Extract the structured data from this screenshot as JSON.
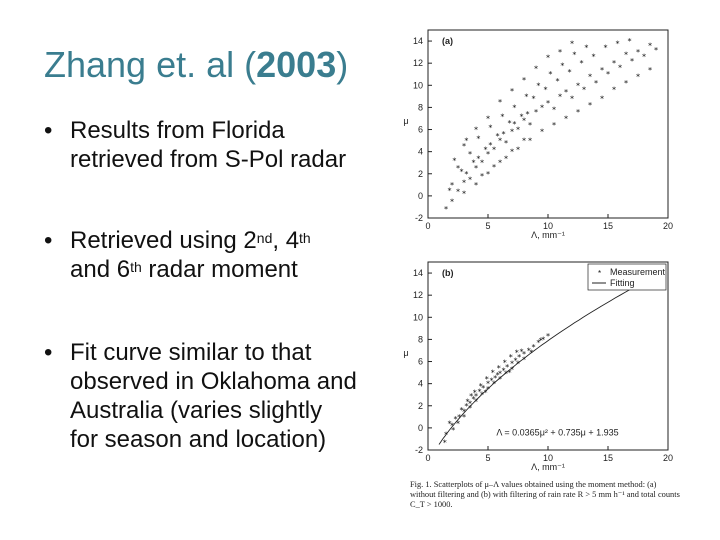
{
  "slide": {
    "title_prefix": "Zhang et. al (",
    "title_year": "2003",
    "title_suffix": ")",
    "bullets": [
      {
        "line1": "Results from Florida",
        "line2": "retrieved from S-Pol radar"
      },
      {
        "line1_a": "Retrieved using 2",
        "sup1": "nd",
        "line1_b": ", 4",
        "sup2": "th",
        "line2_a": "and 6",
        "sup3": "th",
        "line2_b": " radar moment"
      },
      {
        "line1": "Fit curve similar to that",
        "line2": "observed in Oklahoma and",
        "line3": "Australia (varies slightly",
        "line4": "for season and location)"
      }
    ]
  },
  "figure": {
    "caption": "Fig. 1. Scatterplots of μ–Λ values obtained using the moment method: (a) without filtering and (b) with filtering of rain rate R > 5 mm h⁻¹ and total counts C_T > 1000.",
    "chart_data": [
      {
        "type": "scatter",
        "panel_label": "(a)",
        "xlabel": "Λ, mm⁻¹",
        "ylabel": "μ",
        "xlim": [
          0,
          20
        ],
        "ylim": [
          -2,
          15
        ],
        "x_ticks": [
          "0",
          "5",
          "10",
          "15",
          "20"
        ],
        "y_ticks": [
          "-2",
          "0",
          "2",
          "4",
          "6",
          "8",
          "10",
          "12",
          "14"
        ],
        "series": [
          {
            "values_description_free": true,
            "points": [
              [
                1.5,
                -1.2
              ],
              [
                2,
                -0.5
              ],
              [
                2.5,
                0.4
              ],
              [
                3,
                1.2
              ],
              [
                3.2,
                2
              ],
              [
                3.5,
                1.5
              ],
              [
                4,
                2.5
              ],
              [
                4.2,
                3.4
              ],
              [
                4.5,
                3
              ],
              [
                5,
                3.8
              ],
              [
                5.2,
                4.6
              ],
              [
                5.5,
                4.2
              ],
              [
                6,
                5
              ],
              [
                6.3,
                5.6
              ],
              [
                6.5,
                4.8
              ],
              [
                7,
                5.8
              ],
              [
                7.2,
                6.5
              ],
              [
                7.5,
                6
              ],
              [
                8,
                6.8
              ],
              [
                8.3,
                7.4
              ],
              [
                8.5,
                6.4
              ],
              [
                9,
                7.6
              ],
              [
                9.5,
                8
              ],
              [
                10,
                8.4
              ],
              [
                10.5,
                7.8
              ],
              [
                11,
                9
              ],
              [
                11.5,
                9.4
              ],
              [
                12,
                8.8
              ],
              [
                12.5,
                10
              ],
              [
                13,
                9.6
              ],
              [
                13.5,
                10.8
              ],
              [
                14,
                10.2
              ],
              [
                14.5,
                11.4
              ],
              [
                15,
                11
              ],
              [
                15.5,
                12
              ],
              [
                16,
                11.6
              ],
              [
                16.5,
                12.8
              ],
              [
                17,
                12.2
              ],
              [
                17.5,
                13
              ],
              [
                18,
                12.6
              ],
              [
                18.5,
                13.6
              ],
              [
                19,
                13.2
              ],
              [
                3,
                4.5
              ],
              [
                4,
                6
              ],
              [
                5,
                7
              ],
              [
                6,
                8.5
              ],
              [
                7,
                9.5
              ],
              [
                8,
                10.5
              ],
              [
                9,
                11.5
              ],
              [
                10,
                12.5
              ],
              [
                11,
                13
              ],
              [
                12,
                13.8
              ],
              [
                2.5,
                2.5
              ],
              [
                3.5,
                3.8
              ],
              [
                4.5,
                1.8
              ],
              [
                5.5,
                2.6
              ],
              [
                6.5,
                3.4
              ],
              [
                7.5,
                4.2
              ],
              [
                8.5,
                5
              ],
              [
                9.5,
                5.8
              ],
              [
                10.5,
                6.4
              ],
              [
                11.5,
                7
              ],
              [
                12.5,
                7.6
              ],
              [
                13.5,
                8.2
              ],
              [
                14.5,
                8.8
              ],
              [
                15.5,
                9.6
              ],
              [
                16.5,
                10.2
              ],
              [
                17.5,
                10.8
              ],
              [
                18.5,
                11.4
              ],
              [
                2,
                1
              ],
              [
                3,
                0.2
              ],
              [
                4,
                1
              ],
              [
                5,
                2
              ],
              [
                6,
                3
              ],
              [
                7,
                4
              ],
              [
                8,
                5
              ],
              [
                1.8,
                0.5
              ],
              [
                2.8,
                2.2
              ],
              [
                3.8,
                3
              ],
              [
                4.8,
                4.2
              ],
              [
                5.8,
                5.4
              ],
              [
                6.8,
                6.6
              ],
              [
                7.8,
                7.2
              ],
              [
                8.8,
                8.8
              ],
              [
                9.8,
                9.6
              ],
              [
                10.8,
                10.4
              ],
              [
                11.8,
                11.2
              ],
              [
                12.8,
                12
              ],
              [
                13.8,
                12.6
              ],
              [
                14.8,
                13.4
              ],
              [
                15.8,
                13.8
              ],
              [
                16.8,
                14
              ],
              [
                2.2,
                3.2
              ],
              [
                3.2,
                5
              ],
              [
                4.2,
                5.2
              ],
              [
                5.2,
                6.2
              ],
              [
                6.2,
                7.2
              ],
              [
                7.2,
                8
              ],
              [
                8.2,
                9
              ],
              [
                9.2,
                10
              ],
              [
                10.2,
                11
              ],
              [
                11.2,
                11.8
              ],
              [
                12.2,
                12.8
              ],
              [
                13.2,
                13.4
              ]
            ]
          }
        ]
      },
      {
        "type": "scatter",
        "panel_label": "(b)",
        "xlabel": "Λ, mm⁻¹",
        "ylabel": "μ",
        "xlim": [
          0,
          20
        ],
        "ylim": [
          -2,
          15
        ],
        "x_ticks": [
          "0",
          "5",
          "10",
          "15",
          "20"
        ],
        "y_ticks": [
          "-2",
          "0",
          "2",
          "4",
          "6",
          "8",
          "10",
          "12",
          "14"
        ],
        "legend": [
          "Measurement",
          "Fitting"
        ],
        "fit_label": "Λ = 0.0365μ² + 0.735μ + 1.935",
        "fit_coefficients": {
          "a": 0.0365,
          "b": 0.735,
          "c": 1.935
        },
        "series": [
          {
            "name": "Measurement",
            "points": [
              [
                1.5,
                -0.6
              ],
              [
                2,
                0.2
              ],
              [
                2.3,
                0.8
              ],
              [
                2.6,
                1
              ],
              [
                3,
                1.5
              ],
              [
                3.2,
                2
              ],
              [
                3.5,
                2.2
              ],
              [
                3.8,
                2.6
              ],
              [
                4,
                2.9
              ],
              [
                4.3,
                3.3
              ],
              [
                4.6,
                3.6
              ],
              [
                5,
                4
              ],
              [
                5.3,
                4.3
              ],
              [
                5.6,
                4.5
              ],
              [
                6,
                4.9
              ],
              [
                6.3,
                5.2
              ],
              [
                6.6,
                5.5
              ],
              [
                7,
                5.8
              ],
              [
                7.3,
                6.1
              ],
              [
                7.6,
                6.4
              ],
              [
                8,
                6.7
              ],
              [
                8.4,
                7
              ],
              [
                8.8,
                7.3
              ],
              [
                9.2,
                7.7
              ],
              [
                9.6,
                8
              ],
              [
                10,
                8.3
              ],
              [
                2.5,
                0.4
              ],
              [
                3,
                1
              ],
              [
                3.5,
                1.8
              ],
              [
                4,
                2.4
              ],
              [
                4.5,
                3
              ],
              [
                5,
                3.5
              ],
              [
                5.5,
                4
              ],
              [
                6,
                4.4
              ],
              [
                6.5,
                4.9
              ],
              [
                7,
                5.3
              ],
              [
                7.5,
                5.8
              ],
              [
                8,
                6.2
              ],
              [
                2.8,
                1.6
              ],
              [
                3.3,
                2.4
              ],
              [
                3.9,
                3.2
              ],
              [
                4.4,
                3.8
              ],
              [
                4.9,
                4.4
              ],
              [
                5.4,
                5
              ],
              [
                5.9,
                5.4
              ],
              [
                6.4,
                5.9
              ],
              [
                6.9,
                6.4
              ],
              [
                7.4,
                6.8
              ],
              [
                2.1,
                -0.2
              ],
              [
                1.8,
                0.4
              ],
              [
                3.6,
                2.9
              ],
              [
                4.8,
                3.2
              ],
              [
                5.8,
                4.8
              ],
              [
                6.8,
                5
              ],
              [
                7.8,
                6.9
              ],
              [
                8.6,
                6.8
              ],
              [
                9.4,
                7.9
              ],
              [
                1.4,
                -1.3
              ]
            ]
          }
        ]
      }
    ]
  }
}
